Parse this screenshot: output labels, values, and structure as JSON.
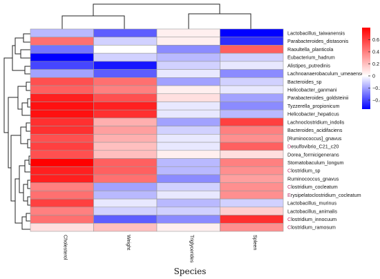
{
  "chart_data": {
    "type": "heatmap",
    "title": "",
    "xlabel": "Species",
    "ylabel": "",
    "columns": [
      "Cholesterol",
      "Weight",
      "Triglycerides",
      "Spleen"
    ],
    "rows": [
      "Lactobacillus_taiwanensis",
      "Parabacteroides_distasonis",
      "Raoultella_planticola",
      "Eubacterium_hadrum",
      "Alistipes_putredinis",
      "Lachnoanaerobaculum_umeaense",
      "Bacteroides_sp",
      "Helicobacter_ganmani",
      "Parabacteroides_goldsteinii",
      "Tyzzerella_propionicum",
      "Helicobacter_hepaticus",
      "Lachnoclostridium_indolis",
      "Bacteroides_acidifaciens",
      "[Ruminococcus]_gnavus",
      "Desulfovibrio_C21_c20",
      "Dorea_formicigenerans",
      "Stomatobaculum_longum",
      "Clostridium_sp",
      "Ruminococcus_gnavus",
      "Clostridium_cocleatum",
      "Erysipelatoclostridium_cocleatum",
      "Lactobacillus_murinus",
      "Lactobacillus_animalis",
      "Clostridium_innocuum",
      "Clostridium_ramosum"
    ],
    "values": [
      [
        -0.15,
        -0.35,
        0.05,
        -0.55
      ],
      [
        0.45,
        -0.1,
        0.05,
        -0.45
      ],
      [
        -0.3,
        0.0,
        -0.25,
        0.5
      ],
      [
        -0.55,
        -0.1,
        -0.15,
        -0.1
      ],
      [
        -0.4,
        -0.5,
        -0.1,
        -0.05
      ],
      [
        -0.2,
        -0.35,
        -0.05,
        -0.25
      ],
      [
        0.55,
        0.45,
        -0.2,
        -0.1
      ],
      [
        0.5,
        0.4,
        0.05,
        -0.05
      ],
      [
        0.7,
        0.55,
        0.1,
        -0.2
      ],
      [
        0.75,
        0.7,
        -0.05,
        -0.25
      ],
      [
        0.75,
        0.65,
        -0.05,
        -0.15
      ],
      [
        0.65,
        0.25,
        -0.2,
        0.6
      ],
      [
        0.65,
        0.3,
        -0.1,
        0.4
      ],
      [
        0.55,
        0.25,
        -0.05,
        0.35
      ],
      [
        0.6,
        0.2,
        -0.05,
        0.5
      ],
      [
        0.55,
        0.2,
        0.05,
        0.1
      ],
      [
        0.8,
        0.5,
        -0.15,
        0.4
      ],
      [
        0.7,
        0.5,
        -0.15,
        0.35
      ],
      [
        0.7,
        0.45,
        -0.25,
        0.3
      ],
      [
        0.4,
        -0.2,
        -0.1,
        0.35
      ],
      [
        0.45,
        -0.15,
        -0.05,
        0.35
      ],
      [
        0.6,
        -0.05,
        -0.15,
        -0.1
      ],
      [
        0.4,
        -0.1,
        -0.1,
        0.15
      ],
      [
        0.45,
        -0.35,
        -0.25,
        0.65
      ],
      [
        0.1,
        0.2,
        0.05,
        0.35
      ]
    ],
    "row_label_colors": {
      "Desulfovibrio_C21_c20": "#b0306a",
      "Clostridium_sp": "#b0306a",
      "Clostridium_cocleatum": "#b0306a",
      "Erysipelatoclostridium_cocleatum": "#b0306a",
      "Clostridium_innocuum": "#b0306a",
      "Clostridium_ramosum": "#b0306a"
    },
    "colorbar": {
      "min": -0.55,
      "max": 0.8,
      "ticks": [
        0.6,
        0.4,
        0.2,
        0,
        -0.2,
        -0.4
      ],
      "low_color": "#0000ff",
      "mid_color": "#ffffff",
      "high_color": "#ff0000"
    },
    "grid": false,
    "row_dendrogram": true,
    "column_dendrogram": true
  }
}
